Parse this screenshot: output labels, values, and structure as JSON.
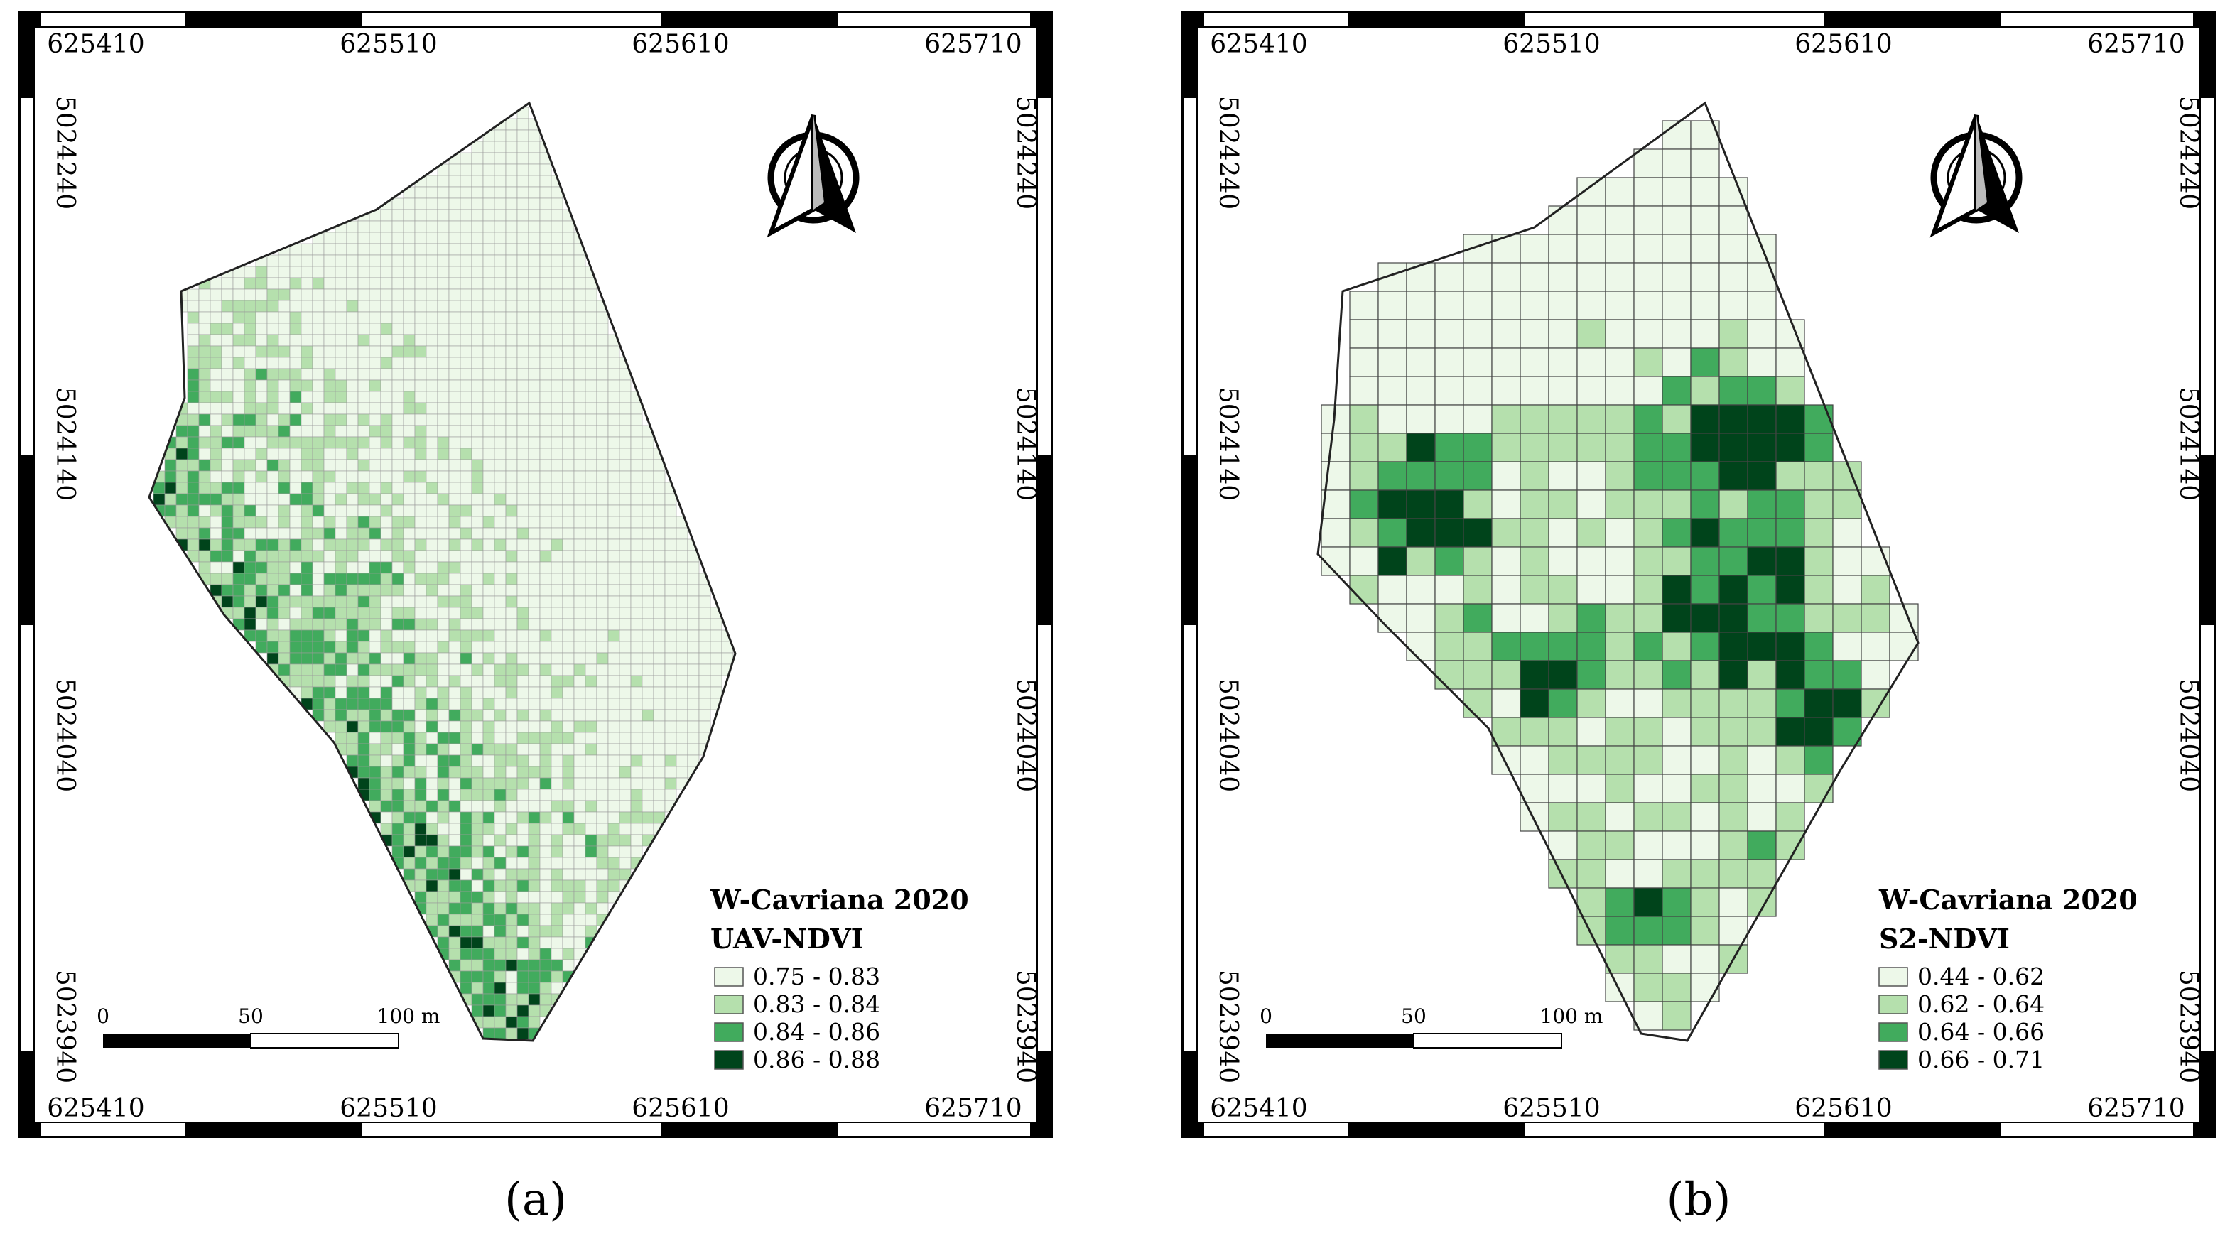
{
  "maps": [
    {
      "panel_label": "(a)",
      "top_ticks": [
        "625410",
        "625510",
        "625610",
        "625710"
      ],
      "bottom_ticks": [
        "625410",
        "625510",
        "625610",
        "625710"
      ],
      "left_ticks": [
        "5024240",
        "5024140",
        "5024040",
        "5023940"
      ],
      "right_ticks": [
        "5024240",
        "5024140",
        "5024040",
        "5023940"
      ],
      "legend_title": "W-Cavriana 2020",
      "legend_subtitle": "UAV-NDVI",
      "legend_classes": [
        {
          "label": "0.75 - 0.83",
          "color": "#edf8e9"
        },
        {
          "label": "0.83 - 0.84",
          "color": "#b5e0ad"
        },
        {
          "label": "0.84 - 0.86",
          "color": "#41ab5d"
        },
        {
          "label": "0.86 - 0.88",
          "color": "#00441b"
        }
      ],
      "scale_labels": [
        "0",
        "50",
        "100 m"
      ],
      "north_arrow": "north-arrow-icon"
    },
    {
      "panel_label": "(b)",
      "top_ticks": [
        "625410",
        "625510",
        "625610",
        "625710"
      ],
      "bottom_ticks": [
        "625410",
        "625510",
        "625610",
        "625710"
      ],
      "left_ticks": [
        "5024240",
        "5024140",
        "5024040",
        "5023940"
      ],
      "right_ticks": [
        "5024240",
        "5024140",
        "5024040",
        "5023940"
      ],
      "legend_title": "W-Cavriana 2020",
      "legend_subtitle": "S2-NDVI",
      "legend_classes": [
        {
          "label": "0.44 - 0.62",
          "color": "#edf8e9"
        },
        {
          "label": "0.62 - 0.64",
          "color": "#b5e0ad"
        },
        {
          "label": "0.64 - 0.66",
          "color": "#41ab5d"
        },
        {
          "label": "0.66 - 0.71",
          "color": "#00441b"
        }
      ],
      "scale_labels": [
        "0",
        "50",
        "100 m"
      ],
      "north_arrow": "north-arrow-icon"
    }
  ]
}
